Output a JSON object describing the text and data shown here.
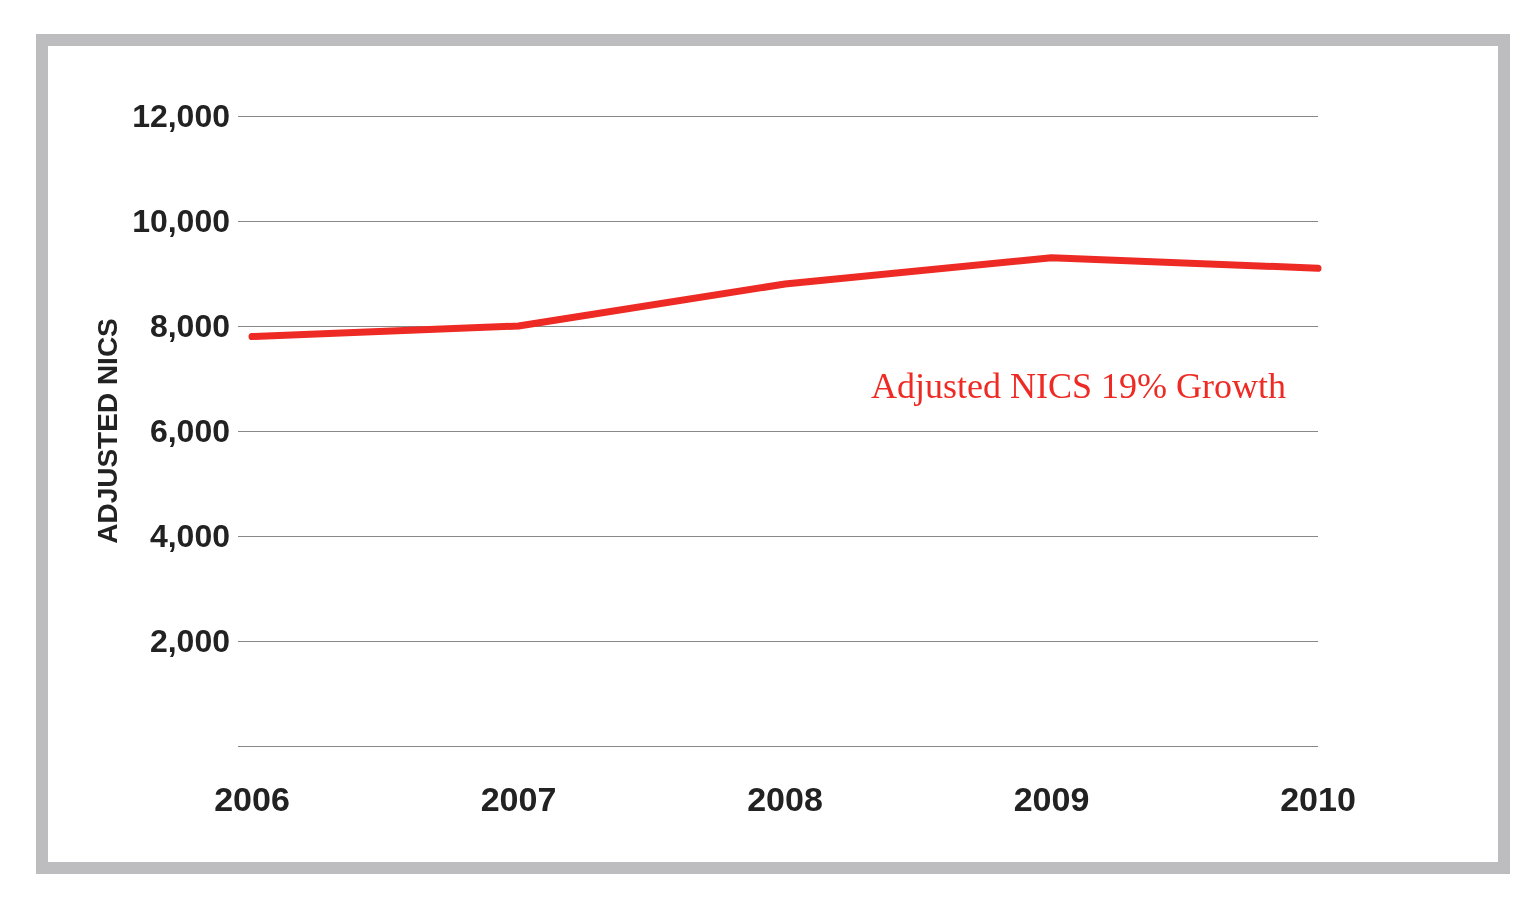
{
  "chart_data": {
    "type": "line",
    "ylabel": "ADJUSTED NICS",
    "categories": [
      "2006",
      "2007",
      "2008",
      "2009",
      "2010"
    ],
    "series": [
      {
        "color": "#ee2a24",
        "values": [
          7800,
          8000,
          8800,
          9300,
          9100
        ]
      }
    ],
    "ylim": [
      0,
      12000
    ],
    "yticks": [
      {
        "value": 0,
        "label": null
      },
      {
        "value": 2000,
        "label": "2,000"
      },
      {
        "value": 4000,
        "label": "4,000"
      },
      {
        "value": 6000,
        "label": "6,000"
      },
      {
        "value": 8000,
        "label": "8,000"
      },
      {
        "value": 10000,
        "label": "10,000"
      },
      {
        "value": 12000,
        "label": "12,000"
      }
    ],
    "grid": "y",
    "marker": "none",
    "line_style": "solid",
    "annotations": [
      "Adjusted NICS 19% Growth"
    ]
  }
}
